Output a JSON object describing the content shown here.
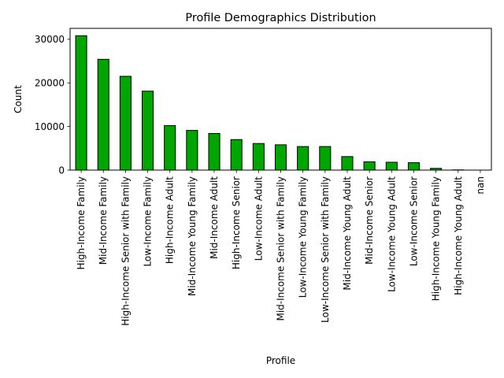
{
  "chart_data": {
    "type": "bar",
    "title": "Profile Demographics Distribution",
    "xlabel": "Profile",
    "ylabel": "Count",
    "ylim": [
      0,
      32500
    ],
    "yticks": [
      0,
      10000,
      20000,
      30000
    ],
    "grid": false,
    "legend": "none",
    "bar_color": "#00a600",
    "bar_edge_color": "#000000",
    "categories": [
      "High-Income Family",
      "Mid-Income Family",
      "High-Income Senior with Family",
      "Low-Income Family",
      "High-Income Adult",
      "Mid-Income Young Family",
      "Mid-Income Adult",
      "High-Income Senior",
      "Low-Income Adult",
      "Mid-Income Senior with Family",
      "Low-Income Young Family",
      "Low-Income Senior with Family",
      "Mid-Income Young Adult",
      "Mid-Income Senior",
      "Low-Income Young Adult",
      "Low-Income Senior",
      "High-Income Young Family",
      "High-Income Young Adult",
      "nan"
    ],
    "values": [
      30800,
      25400,
      21500,
      18100,
      10200,
      9100,
      8400,
      7000,
      6100,
      5800,
      5400,
      5400,
      3100,
      1900,
      1800,
      1700,
      400,
      50,
      0
    ]
  }
}
